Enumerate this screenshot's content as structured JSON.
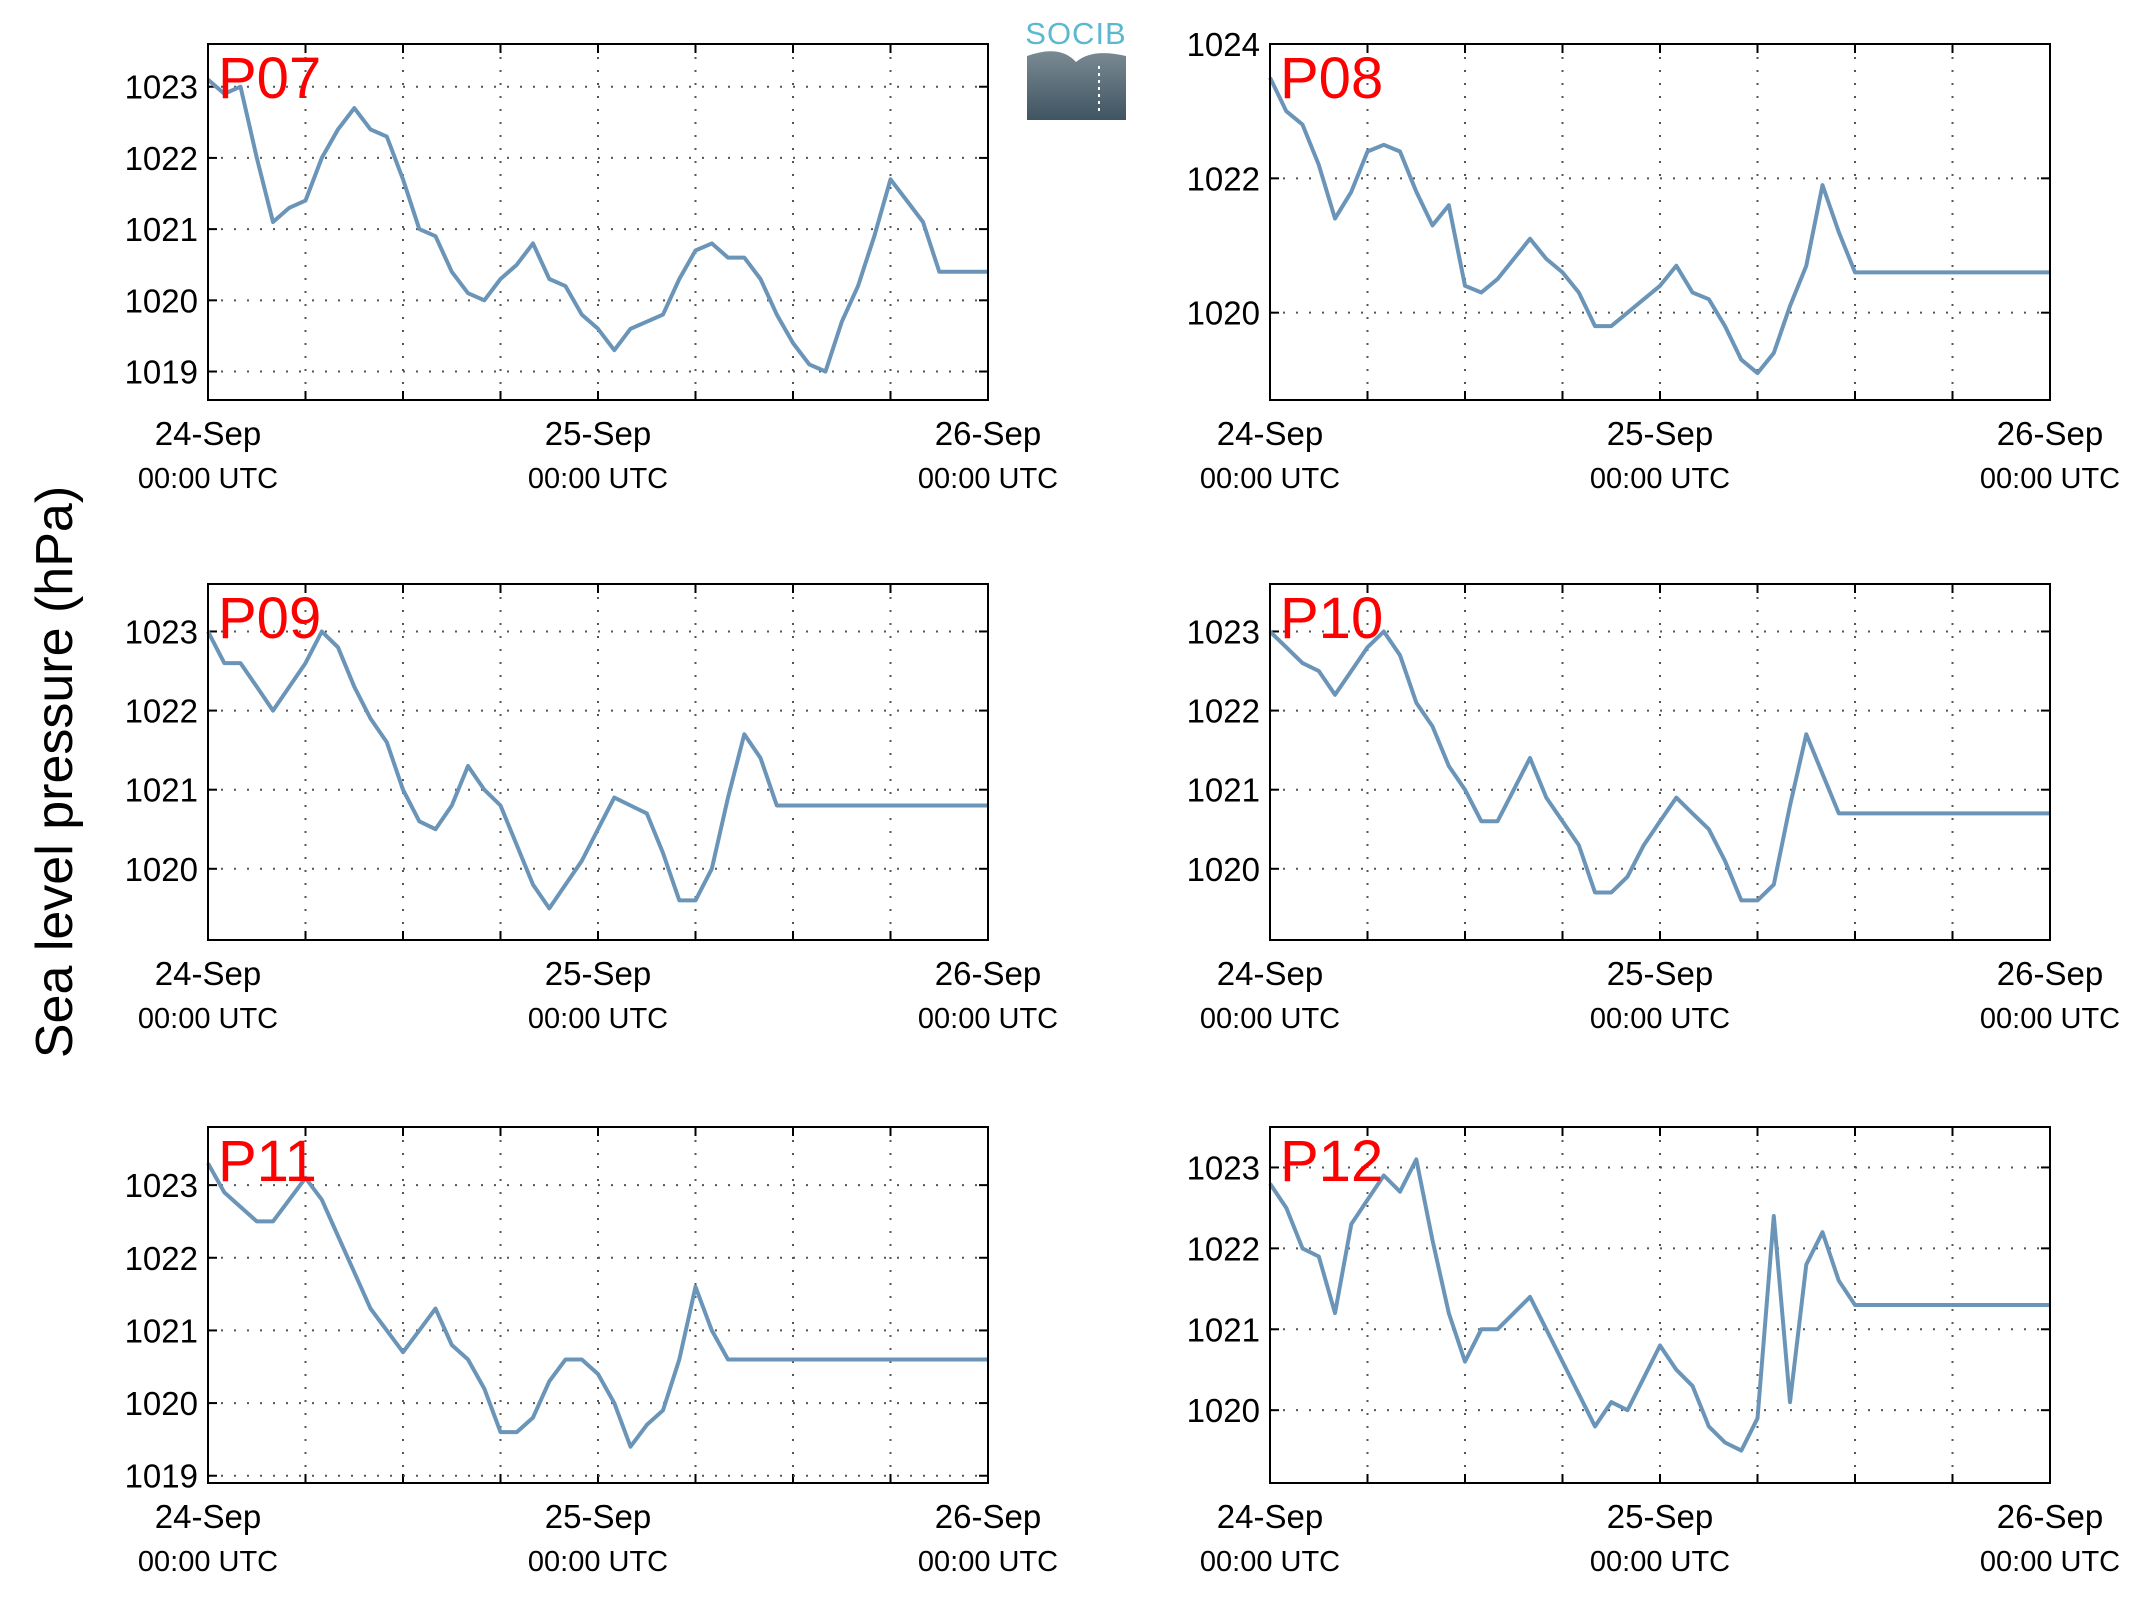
{
  "ylabel": "Sea level pressure (hPa)",
  "logo": {
    "text": "SOCIB",
    "name": "socib-logo"
  },
  "colors": {
    "line": "#6a95b8",
    "label": "#ff0000",
    "grid": "#555555",
    "axes": "#000000"
  },
  "chart_data": [
    {
      "type": "line",
      "name": "P07",
      "ylim": [
        1018.6,
        1023.6
      ],
      "yticks": [
        1019,
        1020,
        1021,
        1022,
        1023
      ],
      "xlim": [
        "2023-09-24 00:00",
        "2023-09-26 00:00"
      ],
      "xtick_labels": [
        [
          "24-Sep",
          "00:00 UTC"
        ],
        [
          "25-Sep",
          "00:00 UTC"
        ],
        [
          "26-Sep",
          "00:00 UTC"
        ]
      ],
      "x_hours": [
        0,
        1,
        2,
        3,
        4,
        5,
        6,
        7,
        8,
        9,
        10,
        11,
        12,
        13,
        14,
        15,
        16,
        17,
        18,
        19,
        20,
        21,
        22,
        23,
        24,
        25,
        26,
        27,
        28,
        29,
        30,
        31,
        32,
        33,
        34,
        35,
        36,
        37,
        38,
        39,
        40,
        41,
        42,
        43,
        44,
        45,
        46,
        47,
        48
      ],
      "y": [
        1023.1,
        1022.9,
        1023.0,
        1022.0,
        1021.1,
        1021.3,
        1021.4,
        1022.0,
        1022.4,
        1022.7,
        1022.4,
        1022.3,
        1021.7,
        1021.0,
        1020.9,
        1020.4,
        1020.1,
        1020.0,
        1020.3,
        1020.5,
        1020.8,
        1020.3,
        1020.2,
        1019.8,
        1019.6,
        1019.3,
        1019.6,
        1019.7,
        1019.8,
        1020.3,
        1020.7,
        1020.8,
        1020.6,
        1020.6,
        1020.3,
        1019.8,
        1019.4,
        1019.1,
        1019.0,
        1019.7,
        1020.2,
        1020.9,
        1021.7,
        1021.4,
        1021.1,
        1020.4,
        1020.4,
        1020.4,
        1020.4
      ]
    },
    {
      "type": "line",
      "name": "P08",
      "ylim": [
        1018.7,
        1024.0
      ],
      "yticks": [
        1020,
        1022,
        1024
      ],
      "xlim": [
        "2023-09-24 00:00",
        "2023-09-26 00:00"
      ],
      "xtick_labels": [
        [
          "24-Sep",
          "00:00 UTC"
        ],
        [
          "25-Sep",
          "00:00 UTC"
        ],
        [
          "26-Sep",
          "00:00 UTC"
        ]
      ],
      "x_hours": [
        0,
        1,
        2,
        3,
        4,
        5,
        6,
        7,
        8,
        9,
        10,
        11,
        12,
        13,
        14,
        15,
        16,
        17,
        18,
        19,
        20,
        21,
        22,
        23,
        24,
        25,
        26,
        27,
        28,
        29,
        30,
        31,
        32,
        33,
        34,
        35,
        36,
        37,
        38,
        39,
        40,
        41,
        42,
        43,
        44,
        45,
        46,
        47,
        48
      ],
      "y": [
        1023.5,
        1023.0,
        1022.8,
        1022.2,
        1021.4,
        1021.8,
        1022.4,
        1022.5,
        1022.4,
        1021.8,
        1021.3,
        1021.6,
        1020.4,
        1020.3,
        1020.5,
        1020.8,
        1021.1,
        1020.8,
        1020.6,
        1020.3,
        1019.8,
        1019.8,
        1020.0,
        1020.2,
        1020.4,
        1020.7,
        1020.3,
        1020.2,
        1019.8,
        1019.3,
        1019.1,
        1019.4,
        1020.1,
        1020.7,
        1021.9,
        1021.2,
        1020.6,
        1020.6,
        1020.6,
        1020.6,
        1020.6,
        1020.6,
        1020.6,
        1020.6,
        1020.6,
        1020.6,
        1020.6,
        1020.6,
        1020.6
      ]
    },
    {
      "type": "line",
      "name": "P09",
      "ylim": [
        1019.1,
        1023.6
      ],
      "yticks": [
        1020,
        1021,
        1022,
        1023
      ],
      "xlim": [
        "2023-09-24 00:00",
        "2023-09-26 00:00"
      ],
      "xtick_labels": [
        [
          "24-Sep",
          "00:00 UTC"
        ],
        [
          "25-Sep",
          "00:00 UTC"
        ],
        [
          "26-Sep",
          "00:00 UTC"
        ]
      ],
      "x_hours": [
        0,
        1,
        2,
        3,
        4,
        5,
        6,
        7,
        8,
        9,
        10,
        11,
        12,
        13,
        14,
        15,
        16,
        17,
        18,
        19,
        20,
        21,
        22,
        23,
        24,
        25,
        26,
        27,
        28,
        29,
        30,
        31,
        32,
        33,
        34,
        35,
        36,
        37,
        38,
        39,
        40,
        41,
        42,
        43,
        44,
        45,
        46,
        47,
        48
      ],
      "y": [
        1023.0,
        1022.6,
        1022.6,
        1022.3,
        1022.0,
        1022.3,
        1022.6,
        1023.0,
        1022.8,
        1022.3,
        1021.9,
        1021.6,
        1021.0,
        1020.6,
        1020.5,
        1020.8,
        1021.3,
        1021.0,
        1020.8,
        1020.3,
        1019.8,
        1019.5,
        1019.8,
        1020.1,
        1020.5,
        1020.9,
        1020.8,
        1020.7,
        1020.2,
        1019.6,
        1019.6,
        1020.0,
        1020.9,
        1021.7,
        1021.4,
        1020.8,
        1020.8,
        1020.8,
        1020.8,
        1020.8,
        1020.8,
        1020.8,
        1020.8,
        1020.8,
        1020.8,
        1020.8,
        1020.8,
        1020.8,
        1020.8
      ]
    },
    {
      "type": "line",
      "name": "P10",
      "ylim": [
        1019.1,
        1023.6
      ],
      "yticks": [
        1020,
        1021,
        1022,
        1023
      ],
      "xlim": [
        "2023-09-24 00:00",
        "2023-09-26 00:00"
      ],
      "xtick_labels": [
        [
          "24-Sep",
          "00:00 UTC"
        ],
        [
          "25-Sep",
          "00:00 UTC"
        ],
        [
          "26-Sep",
          "00:00 UTC"
        ]
      ],
      "x_hours": [
        0,
        1,
        2,
        3,
        4,
        5,
        6,
        7,
        8,
        9,
        10,
        11,
        12,
        13,
        14,
        15,
        16,
        17,
        18,
        19,
        20,
        21,
        22,
        23,
        24,
        25,
        26,
        27,
        28,
        29,
        30,
        31,
        32,
        33,
        34,
        35,
        36,
        37,
        38,
        39,
        40,
        41,
        42,
        43,
        44,
        45,
        46,
        47,
        48
      ],
      "y": [
        1023.0,
        1022.8,
        1022.6,
        1022.5,
        1022.2,
        1022.5,
        1022.8,
        1023.0,
        1022.7,
        1022.1,
        1021.8,
        1021.3,
        1021.0,
        1020.6,
        1020.6,
        1021.0,
        1021.4,
        1020.9,
        1020.6,
        1020.3,
        1019.7,
        1019.7,
        1019.9,
        1020.3,
        1020.6,
        1020.9,
        1020.7,
        1020.5,
        1020.1,
        1019.6,
        1019.6,
        1019.8,
        1020.8,
        1021.7,
        1021.2,
        1020.7,
        1020.7,
        1020.7,
        1020.7,
        1020.7,
        1020.7,
        1020.7,
        1020.7,
        1020.7,
        1020.7,
        1020.7,
        1020.7,
        1020.7,
        1020.7
      ]
    },
    {
      "type": "line",
      "name": "P11",
      "ylim": [
        1018.9,
        1023.8
      ],
      "yticks": [
        1019,
        1020,
        1021,
        1022,
        1023
      ],
      "xlim": [
        "2023-09-24 00:00",
        "2023-09-26 00:00"
      ],
      "xtick_labels": [
        [
          "24-Sep",
          "00:00 UTC"
        ],
        [
          "25-Sep",
          "00:00 UTC"
        ],
        [
          "26-Sep",
          "00:00 UTC"
        ]
      ],
      "x_hours": [
        0,
        1,
        2,
        3,
        4,
        5,
        6,
        7,
        8,
        9,
        10,
        11,
        12,
        13,
        14,
        15,
        16,
        17,
        18,
        19,
        20,
        21,
        22,
        23,
        24,
        25,
        26,
        27,
        28,
        29,
        30,
        31,
        32,
        33,
        34,
        35,
        36,
        37,
        38,
        39,
        40,
        41,
        42,
        43,
        44,
        45,
        46,
        47,
        48
      ],
      "y": [
        1023.3,
        1022.9,
        1022.7,
        1022.5,
        1022.5,
        1022.8,
        1023.1,
        1022.8,
        1022.3,
        1021.8,
        1021.3,
        1021.0,
        1020.7,
        1021.0,
        1021.3,
        1020.8,
        1020.6,
        1020.2,
        1019.6,
        1019.6,
        1019.8,
        1020.3,
        1020.6,
        1020.6,
        1020.4,
        1020.0,
        1019.4,
        1019.7,
        1019.9,
        1020.6,
        1021.6,
        1021.0,
        1020.6,
        1020.6,
        1020.6,
        1020.6,
        1020.6,
        1020.6,
        1020.6,
        1020.6,
        1020.6,
        1020.6,
        1020.6,
        1020.6,
        1020.6,
        1020.6,
        1020.6,
        1020.6,
        1020.6
      ]
    },
    {
      "type": "line",
      "name": "P12",
      "ylim": [
        1019.1,
        1023.5
      ],
      "yticks": [
        1020,
        1021,
        1022,
        1023
      ],
      "xlim": [
        "2023-09-24 00:00",
        "2023-09-26 00:00"
      ],
      "xtick_labels": [
        [
          "24-Sep",
          "00:00 UTC"
        ],
        [
          "25-Sep",
          "00:00 UTC"
        ],
        [
          "26-Sep",
          "00:00 UTC"
        ]
      ],
      "x_hours": [
        0,
        1,
        2,
        3,
        4,
        5,
        6,
        7,
        8,
        9,
        10,
        11,
        12,
        13,
        14,
        15,
        16,
        17,
        18,
        19,
        20,
        21,
        22,
        23,
        24,
        25,
        26,
        27,
        28,
        29,
        30,
        31,
        32,
        33,
        34,
        35,
        36,
        37,
        38,
        39,
        40,
        41,
        42,
        43,
        44,
        45,
        46,
        47,
        48
      ],
      "y": [
        1022.8,
        1022.5,
        1022.0,
        1021.9,
        1021.2,
        1022.3,
        1022.6,
        1022.9,
        1022.7,
        1023.1,
        1022.1,
        1021.2,
        1020.6,
        1021.0,
        1021.0,
        1021.2,
        1021.4,
        1021.0,
        1020.6,
        1020.2,
        1019.8,
        1020.1,
        1020.0,
        1020.4,
        1020.8,
        1020.5,
        1020.3,
        1019.8,
        1019.6,
        1019.5,
        1019.9,
        1022.4,
        1020.1,
        1021.8,
        1022.2,
        1021.6,
        1021.3,
        1021.3,
        1021.3,
        1021.3,
        1021.3,
        1021.3,
        1021.3,
        1021.3,
        1021.3,
        1021.3,
        1021.3,
        1021.3,
        1021.3
      ]
    }
  ]
}
